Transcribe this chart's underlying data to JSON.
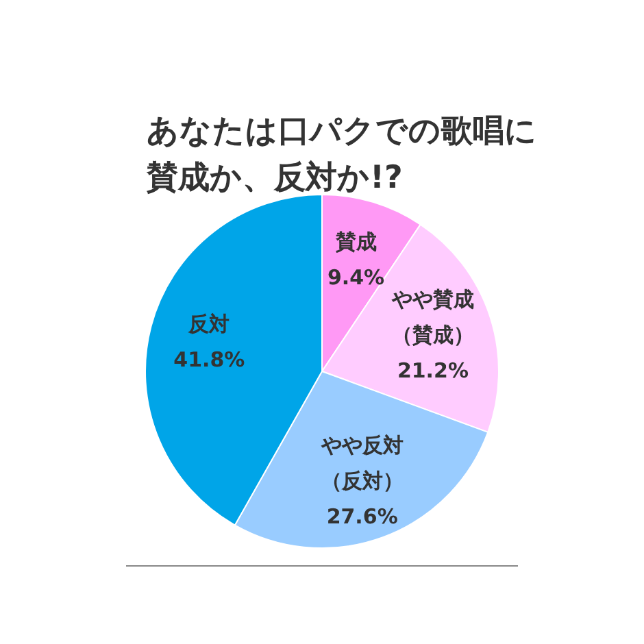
{
  "chart_data": {
    "type": "pie",
    "title": "あなたは口パクでの歌唱に賛成か、反対か!?",
    "categories": [
      "賛成",
      "やや賛成（賛成）",
      "やや反対（反対）",
      "反対"
    ],
    "values": [
      9.4,
      21.2,
      27.6,
      41.8
    ],
    "colors": [
      "#ff99f5",
      "#ffccff",
      "#99ccff",
      "#00a5e8"
    ],
    "value_labels": [
      "9.4%",
      "21.2%",
      "27.6%",
      "41.8%"
    ],
    "legend": false
  }
}
